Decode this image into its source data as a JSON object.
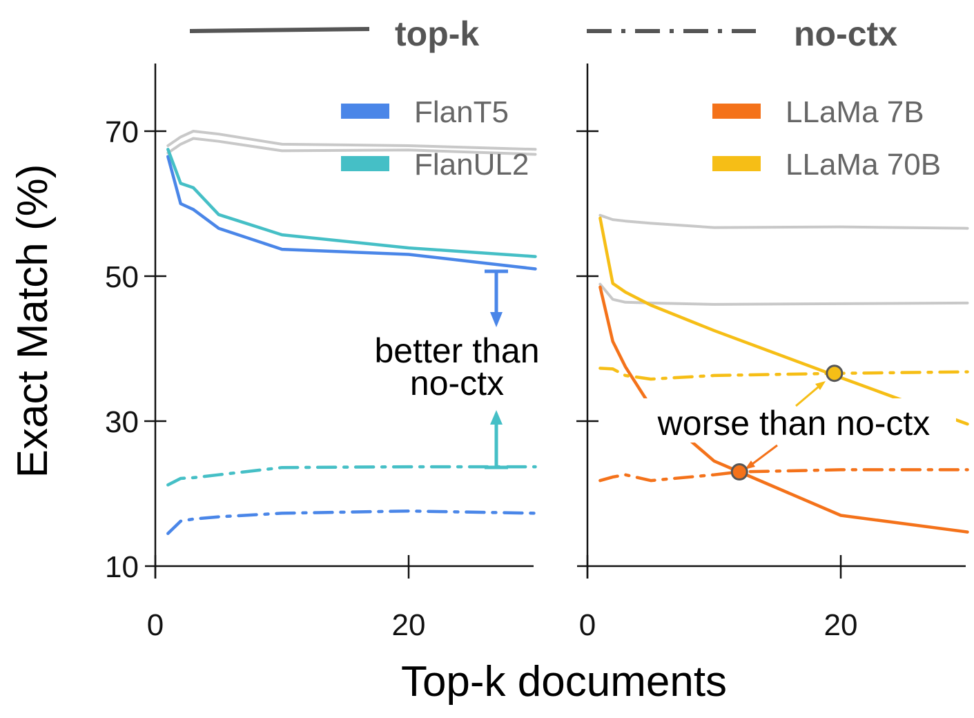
{
  "header": {
    "topk_label": "top-k",
    "noctx_label": "no-ctx"
  },
  "axes": {
    "xlabel": "Top-k documents",
    "ylabel": "Exact Match (%)",
    "yticks": [
      "10",
      "30",
      "50",
      "70"
    ],
    "left_xticks": [
      "0",
      "20"
    ],
    "right_xticks": [
      "0",
      "20"
    ]
  },
  "annotations": {
    "better_line1": "better than",
    "better_line2": "no-ctx",
    "worse": "worse than no-ctx"
  },
  "colors": {
    "FlanT5": "#4a86e8",
    "FlanUL2": "#45bfc6",
    "LLaMa 7B": "#f4721a",
    "LLaMa 70B": "#f6be16",
    "reference": "#c8c8c8"
  },
  "chart_data": [
    {
      "type": "line",
      "panel": "left",
      "xlabel": "Top-k documents",
      "ylabel": "Exact Match (%)",
      "xlim": [
        0,
        30
      ],
      "ylim": [
        10,
        80
      ],
      "legend": [
        "FlanT5",
        "FlanUL2"
      ],
      "legend_position": "top-right",
      "series": [
        {
          "name": "FlanT5",
          "style": "top-k",
          "x": [
            1,
            2,
            3,
            5,
            10,
            20,
            30
          ],
          "y": [
            66.5,
            60.0,
            59.2,
            56.6,
            53.7,
            53.0,
            51.0
          ]
        },
        {
          "name": "FlanUL2",
          "style": "top-k",
          "x": [
            1,
            2,
            3,
            5,
            10,
            20,
            30
          ],
          "y": [
            67.5,
            62.8,
            62.2,
            58.5,
            55.7,
            53.9,
            52.7
          ]
        },
        {
          "name": "FlanT5",
          "style": "no-ctx",
          "x": [
            1,
            2,
            3,
            5,
            10,
            20,
            30
          ],
          "y": [
            14.5,
            16.2,
            16.5,
            16.8,
            17.3,
            17.6,
            17.3
          ]
        },
        {
          "name": "FlanUL2",
          "style": "no-ctx",
          "x": [
            1,
            2,
            3,
            5,
            10,
            20,
            30
          ],
          "y": [
            21.2,
            22.1,
            22.2,
            22.6,
            23.6,
            23.7,
            23.7
          ]
        },
        {
          "style": "reference",
          "x": [
            1,
            2,
            3,
            5,
            10,
            20,
            30
          ],
          "y": [
            68.0,
            69.2,
            70.0,
            69.6,
            68.2,
            68.0,
            67.5
          ]
        },
        {
          "style": "reference",
          "x": [
            1,
            2,
            3,
            5,
            10,
            20,
            30
          ],
          "y": [
            67.0,
            68.2,
            69.0,
            68.6,
            67.3,
            67.4,
            66.8
          ]
        }
      ]
    },
    {
      "type": "line",
      "panel": "right",
      "xlabel": "Top-k documents",
      "ylabel": "Exact Match (%)",
      "xlim": [
        0,
        30
      ],
      "ylim": [
        10,
        80
      ],
      "legend": [
        "LLaMa 7B",
        "LLaMa 70B"
      ],
      "legend_position": "top-right",
      "series": [
        {
          "name": "LLaMa 7B",
          "style": "top-k",
          "x": [
            1,
            2,
            3,
            5,
            10,
            12,
            20,
            30
          ],
          "y": [
            48.5,
            41.0,
            37.5,
            32.0,
            24.5,
            23.0,
            17.0,
            14.7
          ]
        },
        {
          "name": "LLaMa 70B",
          "style": "top-k",
          "x": [
            1,
            2,
            3,
            5,
            10,
            20,
            30
          ],
          "y": [
            58.0,
            49.0,
            47.8,
            46.0,
            42.5,
            36.0,
            29.6
          ]
        },
        {
          "name": "LLaMa 7B",
          "style": "no-ctx",
          "x": [
            1,
            2,
            3,
            5,
            10,
            12,
            20,
            30
          ],
          "y": [
            21.8,
            22.3,
            22.6,
            21.8,
            22.6,
            23.0,
            23.3,
            23.3
          ]
        },
        {
          "name": "LLaMa 70B",
          "style": "no-ctx",
          "x": [
            1,
            2,
            3,
            5,
            10,
            20,
            30
          ],
          "y": [
            37.3,
            37.2,
            36.3,
            35.8,
            36.3,
            36.6,
            36.8
          ]
        },
        {
          "style": "reference",
          "x": [
            1,
            2,
            3,
            5,
            10,
            20,
            30
          ],
          "y": [
            58.4,
            57.8,
            57.6,
            57.3,
            56.7,
            56.8,
            56.6
          ]
        },
        {
          "style": "reference",
          "x": [
            1,
            2,
            3,
            5,
            10,
            20,
            30
          ],
          "y": [
            48.9,
            46.8,
            46.4,
            46.3,
            46.1,
            46.2,
            46.3
          ]
        }
      ],
      "markers": [
        {
          "x": 12,
          "y": 23.0,
          "series": "LLaMa 7B"
        },
        {
          "x": 19.5,
          "y": 36.6,
          "series": "LLaMa 70B"
        }
      ]
    }
  ]
}
